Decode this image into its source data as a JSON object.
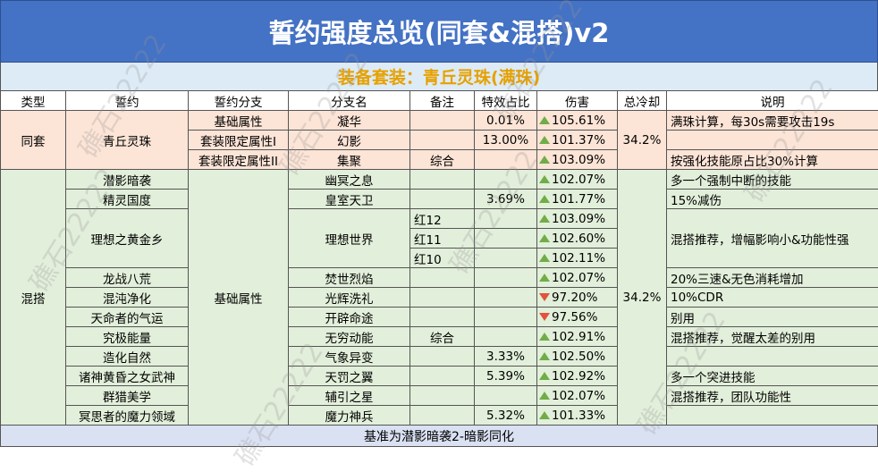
{
  "header": {
    "title": "誓约强度总览(同套&混搭)v2",
    "subtitle": "装备套装：青丘灵珠(满珠)"
  },
  "table": {
    "columns": [
      "类型",
      "誓约",
      "誓约分支",
      "分支名",
      "备注",
      "特效占比",
      "伤害",
      "总冷却",
      "说明"
    ],
    "rows": [
      {
        "type": "同套",
        "oath": "青丘灵珠",
        "branch": "基础属性",
        "branch_name": "凝华",
        "effect_share": "0.01%",
        "damage": "105.61%",
        "trend": "up",
        "cooldown": "34.2%",
        "remark": "满珠计算，每30s需要攻击19s"
      },
      {
        "branch": "套装限定属性I",
        "branch_name": "幻影",
        "effect_share": "13.00%",
        "damage": "101.37%",
        "trend": "up"
      },
      {
        "branch": "套装限定属性II",
        "branch_name": "集聚",
        "note": "综合",
        "damage": "103.09%",
        "trend": "up",
        "remark": "按强化技能原占比30%计算"
      },
      {
        "type": "混搭",
        "oath": "潜影暗袭",
        "branch": "基础属性",
        "branch_name": "幽冥之息",
        "damage": "102.07%",
        "trend": "up",
        "cooldown": "34.2%",
        "remark": "多一个强制中断的技能"
      },
      {
        "oath": "精灵国度",
        "branch_name": "皇室天卫",
        "effect_share": "3.69%",
        "damage": "101.77%",
        "trend": "up",
        "remark": "15%减伤"
      },
      {
        "oath": "理想之黄金乡",
        "branch_name": "理想世界",
        "note": "红12",
        "damage": "103.09%",
        "trend": "up",
        "remark": "混搭推荐，增幅影响小&功能性强"
      },
      {
        "note": "红11",
        "damage": "102.60%",
        "trend": "up"
      },
      {
        "note": "红10",
        "damage": "102.11%",
        "trend": "up"
      },
      {
        "oath": "龙战八荒",
        "branch_name": "焚世烈焰",
        "damage": "102.07%",
        "trend": "up",
        "remark": "20%三速&无色消耗增加"
      },
      {
        "oath": "混沌净化",
        "branch_name": "光辉洗礼",
        "damage": "97.20%",
        "trend": "down",
        "remark": "10%CDR"
      },
      {
        "oath": "天命者的气运",
        "branch_name": "开辟命途",
        "damage": "97.56%",
        "trend": "down",
        "remark": "别用"
      },
      {
        "oath": "究极能量",
        "branch_name": "无穷动能",
        "note": "综合",
        "damage": "102.91%",
        "trend": "up",
        "remark": "混搭推荐，觉醒太差的别用"
      },
      {
        "oath": "造化自然",
        "branch_name": "气象异变",
        "effect_share": "3.33%",
        "damage": "102.50%",
        "trend": "up"
      },
      {
        "oath": "诸神黄昏之女武神",
        "branch_name": "天罚之翼",
        "effect_share": "5.39%",
        "damage": "102.92%",
        "trend": "up",
        "remark": "多一个突进技能"
      },
      {
        "oath": "群猎美学",
        "branch_name": "辅引之星",
        "damage": "102.07%",
        "trend": "up",
        "remark": "混搭推荐，团队功能性"
      },
      {
        "oath": "冥思者的魔力领域",
        "branch_name": "魔力神兵",
        "effect_share": "5.32%",
        "damage": "101.33%",
        "trend": "up"
      }
    ]
  },
  "footer": "基准为潜影暗袭2-暗影同化",
  "watermark": "礁石22222"
}
